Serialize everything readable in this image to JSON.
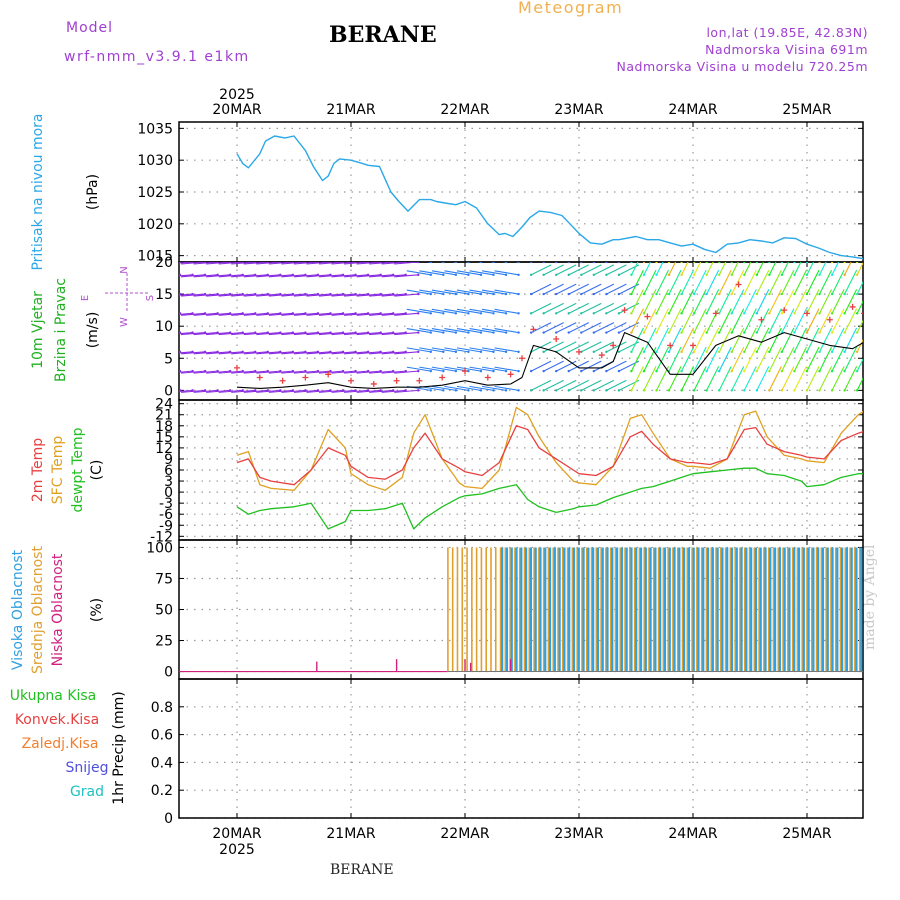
{
  "header": {
    "model_label": "Model",
    "model_name": "wrf-nmm_v3.9.1 e1km",
    "station": "BERANE",
    "meteogram": "Meteogram",
    "lonlat": "lon,lat (19.85E, 42.83N)",
    "elevation": "Nadmorska Visina 691m",
    "elevation_model": "Nadmorska Visina u modelu 720.25m"
  },
  "footer": {
    "station": "BERANE",
    "credit": "made by Angel"
  },
  "colors": {
    "pressure": "#2aa8e8",
    "wind_label": "#20b020",
    "compass": "#b050d0",
    "temp2m": "#e84040",
    "sfc": "#e0a020",
    "dewpt": "#20c020",
    "high_cloud": "#30a0e0",
    "mid_cloud": "#e0a030",
    "low_cloud": "#d02080",
    "grid": "#999999"
  },
  "chart_data": [
    {
      "type": "line",
      "panel": "pressure",
      "xaxis": {
        "year": "2025",
        "dates": [
          "20MAR",
          "21MAR",
          "22MAR",
          "23MAR",
          "24MAR",
          "25MAR"
        ]
      },
      "ylabel_lines": [
        "Pritisak na nivou mora",
        "(hPa)"
      ],
      "ylim": [
        1014,
        1036
      ],
      "yticks": [
        1015,
        1020,
        1025,
        1030,
        1035
      ],
      "x_days": [
        0,
        0.05,
        0.1,
        0.2,
        0.25,
        0.33,
        0.42,
        0.5,
        0.6,
        0.67,
        0.75,
        0.8,
        0.85,
        0.9,
        1.0,
        1.1,
        1.15,
        1.25,
        1.3,
        1.35,
        1.42,
        1.5,
        1.6,
        1.7,
        1.75,
        1.85,
        1.92,
        2.0,
        2.1,
        2.2,
        2.3,
        2.35,
        2.42,
        2.5,
        2.57,
        2.65,
        2.75,
        2.85,
        2.92,
        3.0,
        3.1,
        3.2,
        3.3,
        3.35,
        3.5,
        3.6,
        3.7,
        3.8,
        3.9,
        4.0,
        4.1,
        4.2,
        4.3,
        4.4,
        4.5,
        4.6,
        4.7,
        4.8,
        4.9,
        5.0,
        5.1,
        5.2,
        5.3,
        5.4,
        5.5
      ],
      "series": [
        {
          "values": [
            1031.0,
            1029.5,
            1028.8,
            1031.0,
            1033.0,
            1033.8,
            1033.5,
            1033.8,
            1031.5,
            1029.0,
            1026.8,
            1027.5,
            1029.5,
            1030.2,
            1030.0,
            1029.5,
            1029.2,
            1029.0,
            1027.0,
            1025.0,
            1023.5,
            1022.0,
            1023.8,
            1023.8,
            1023.5,
            1023.2,
            1023.0,
            1023.5,
            1022.5,
            1020.0,
            1018.3,
            1018.5,
            1018.0,
            1019.5,
            1021.0,
            1022.0,
            1021.8,
            1021.3,
            1020.0,
            1018.5,
            1017.0,
            1016.8,
            1017.5,
            1017.5,
            1018.0,
            1017.5,
            1017.5,
            1017.0,
            1016.5,
            1016.8,
            1016.0,
            1015.5,
            1016.8,
            1017.0,
            1017.5,
            1017.3,
            1017.0,
            1017.8,
            1017.7,
            1016.8,
            1016.2,
            1015.5,
            1015.0,
            1014.8,
            1014.5
          ]
        }
      ]
    },
    {
      "type": "line",
      "panel": "wind",
      "ylabel_lines": [
        "10m Vjetar",
        "Brzina i Pravac",
        "(m/s)"
      ],
      "compass": [
        "N",
        "W",
        "E",
        "S"
      ],
      "ylim": [
        -1.5,
        20
      ],
      "yticks": [
        0,
        5,
        10,
        15,
        20
      ],
      "x_days": [
        0,
        0.2,
        0.4,
        0.6,
        0.8,
        1.0,
        1.2,
        1.4,
        1.6,
        1.8,
        2.0,
        2.2,
        2.4,
        2.5,
        2.6,
        2.8,
        3.0,
        3.2,
        3.3,
        3.4,
        3.6,
        3.8,
        4.0,
        4.2,
        4.4,
        4.6,
        4.8,
        5.0,
        5.2,
        5.4,
        5.5
      ],
      "series": [
        {
          "name": "wind speed",
          "values": [
            0.5,
            0.3,
            0.5,
            0.8,
            1.2,
            0.5,
            0.3,
            0.5,
            0.5,
            0.8,
            1.5,
            0.8,
            1.0,
            2.0,
            7.0,
            6.0,
            3.5,
            3.5,
            4.5,
            9.0,
            7.5,
            2.5,
            2.5,
            7.0,
            8.5,
            7.5,
            9.0,
            8.0,
            7.0,
            6.5,
            7.5
          ]
        },
        {
          "name": "gust",
          "values": [
            3.5,
            2.0,
            1.5,
            2.0,
            2.5,
            1.5,
            1.0,
            1.5,
            1.5,
            2.0,
            3.0,
            2.0,
            2.5,
            5.0,
            9.5,
            8.0,
            6.0,
            5.5,
            7.0,
            12.5,
            11.5,
            7.0,
            7.0,
            12.0,
            16.5,
            11.0,
            12.5,
            12.0,
            11.0,
            13.0,
            12.0
          ]
        }
      ]
    },
    {
      "type": "line",
      "panel": "temperature",
      "ylabel_lines": [
        "2m Temp",
        "SFC Temp",
        "dewpt Temp",
        "(C)"
      ],
      "ylim": [
        -13,
        25
      ],
      "yticks": [
        -12,
        -9,
        -6,
        -3,
        0,
        3,
        6,
        9,
        12,
        15,
        18,
        21,
        24
      ],
      "x_days": [
        0,
        0.1,
        0.2,
        0.3,
        0.5,
        0.65,
        0.8,
        0.95,
        1.0,
        1.15,
        1.3,
        1.45,
        1.55,
        1.65,
        1.8,
        1.95,
        2.0,
        2.15,
        2.3,
        2.45,
        2.55,
        2.65,
        2.8,
        2.95,
        3.0,
        3.15,
        3.3,
        3.45,
        3.55,
        3.65,
        3.8,
        3.95,
        4.0,
        4.15,
        4.3,
        4.45,
        4.55,
        4.65,
        4.8,
        4.95,
        5.0,
        5.15,
        5.3,
        5.45,
        5.5
      ],
      "series": [
        {
          "name": "2m Temp",
          "values": [
            8,
            9,
            4,
            3,
            2,
            6,
            12,
            10,
            7,
            4,
            3.5,
            6,
            12,
            16,
            9,
            6.5,
            5.5,
            4.5,
            8,
            18,
            17,
            12,
            9,
            6,
            5,
            4.5,
            7,
            15,
            16.5,
            13,
            9,
            8,
            8,
            7.5,
            9,
            17,
            17.5,
            13,
            11,
            10,
            9.5,
            9,
            14,
            16,
            16.5
          ]
        },
        {
          "name": "SFC Temp",
          "values": [
            10,
            11,
            2,
            1,
            0.5,
            6,
            17,
            12,
            5,
            2,
            0.5,
            4,
            16,
            21,
            9,
            2.5,
            1.5,
            1,
            6,
            23,
            21,
            15,
            8,
            3,
            2.5,
            2,
            7,
            20,
            21,
            16,
            9,
            7,
            7,
            6.5,
            9,
            21,
            22,
            15,
            10,
            9,
            8.5,
            8,
            16,
            21,
            22
          ]
        },
        {
          "name": "dewpt Temp",
          "values": [
            -4,
            -6,
            -5,
            -4.5,
            -4,
            -3,
            -10,
            -8,
            -5,
            -5,
            -4.5,
            -3,
            -10,
            -7,
            -4,
            -1.5,
            -1,
            -0.5,
            1,
            2,
            -2,
            -4,
            -5.5,
            -4.5,
            -4,
            -3.5,
            -1.5,
            0,
            1,
            1.5,
            3,
            4.5,
            5,
            5.5,
            6,
            6.5,
            6.5,
            5,
            4.5,
            3,
            1.5,
            2,
            4,
            5,
            5
          ]
        }
      ]
    },
    {
      "type": "bar",
      "panel": "clouds",
      "ylabel_lines": [
        "Visoka Oblacnost",
        "Srednja Oblacnost",
        "Niska Oblacnost",
        "(%)"
      ],
      "ylim": [
        -6,
        106
      ],
      "yticks": [
        0,
        25,
        50,
        75,
        100
      ],
      "series": [
        {
          "name": "Visoka Oblacnost",
          "from_day": 2.3,
          "to_day": 5.5,
          "value": 100
        },
        {
          "name": "Srednja Oblacnost",
          "from_day": 1.85,
          "to_day": 5.5,
          "value": 100
        },
        {
          "name": "Niska Oblacnost",
          "x_days": [
            0.7,
            1.4,
            2.0,
            2.05,
            2.4
          ],
          "values": [
            8,
            10,
            10,
            7,
            10
          ]
        }
      ]
    },
    {
      "type": "bar",
      "panel": "precip",
      "ylabel_lines": [
        "1hr Precip (mm)"
      ],
      "legend": [
        "Ukupna Kisa",
        "Konvek.Kisa",
        "Zaledj.Kisa",
        "Snijeg",
        "Grad"
      ],
      "ylim": [
        0,
        1
      ],
      "yticks": [
        "0",
        "0.2",
        "0.4",
        "0.6",
        "0.8"
      ],
      "series": []
    }
  ]
}
